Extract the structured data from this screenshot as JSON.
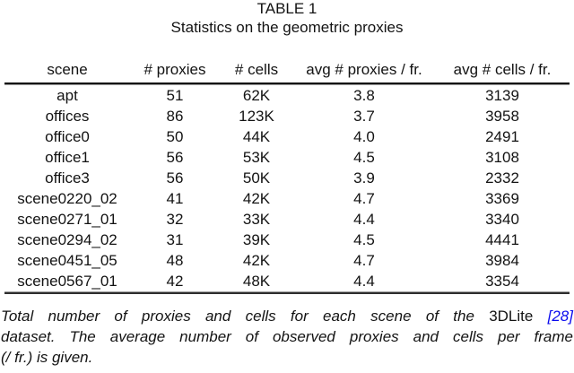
{
  "header": {
    "label": "TABLE 1",
    "subtitle": "Statistics on the geometric proxies"
  },
  "table": {
    "columns": [
      "scene",
      "# proxies",
      "# cells",
      "avg # proxies / fr.",
      "avg # cells / fr."
    ],
    "rows": [
      {
        "scene": "apt",
        "proxies": "51",
        "cells": "62K",
        "avg_proxies": "3.8",
        "avg_cells": "3139"
      },
      {
        "scene": "offices",
        "proxies": "86",
        "cells": "123K",
        "avg_proxies": "3.7",
        "avg_cells": "3958"
      },
      {
        "scene": "office0",
        "proxies": "50",
        "cells": "44K",
        "avg_proxies": "4.0",
        "avg_cells": "2491"
      },
      {
        "scene": "office1",
        "proxies": "56",
        "cells": "53K",
        "avg_proxies": "4.5",
        "avg_cells": "3108"
      },
      {
        "scene": "office3",
        "proxies": "56",
        "cells": "50K",
        "avg_proxies": "3.9",
        "avg_cells": "2332"
      },
      {
        "scene": "scene0220_02",
        "proxies": "41",
        "cells": "42K",
        "avg_proxies": "4.7",
        "avg_cells": "3369"
      },
      {
        "scene": "scene0271_01",
        "proxies": "32",
        "cells": "33K",
        "avg_proxies": "4.4",
        "avg_cells": "3340"
      },
      {
        "scene": "scene0294_02",
        "proxies": "31",
        "cells": "39K",
        "avg_proxies": "4.5",
        "avg_cells": "4441"
      },
      {
        "scene": "scene0451_05",
        "proxies": "48",
        "cells": "42K",
        "avg_proxies": "4.7",
        "avg_cells": "3984"
      },
      {
        "scene": "scene0567_01",
        "proxies": "42",
        "cells": "48K",
        "avg_proxies": "4.4",
        "avg_cells": "3354"
      }
    ]
  },
  "caption": {
    "line1_text": "Total number of proxies and cells for each scene of the",
    "line1_dataset_name": "3DLite",
    "line1_citation": "[28]",
    "line2_text": "dataset. The average number of observed proxies and cells per frame",
    "line3_text": "(/ fr.) is given."
  },
  "colors": {
    "citation_blue": "#0b0bee",
    "text": "#131313"
  }
}
